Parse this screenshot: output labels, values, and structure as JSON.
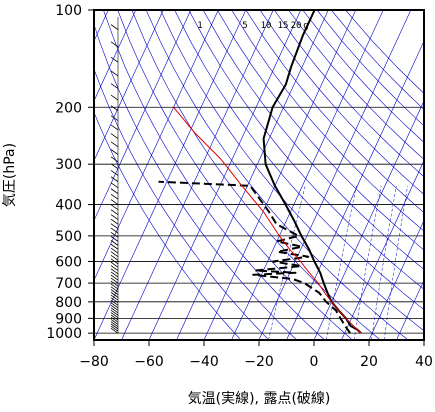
{
  "chart_data": {
    "type": "line",
    "title": "",
    "xlabel": "気温(実線), 露点(破線)",
    "ylabel": "気圧(hPa)",
    "xlim": [
      -80,
      40
    ],
    "ylim": [
      1050,
      100
    ],
    "y_scale": "log",
    "grid": true,
    "x_ticks": [
      -80,
      -60,
      -40,
      -20,
      0,
      20,
      40
    ],
    "y_ticks": [
      100,
      200,
      300,
      400,
      500,
      600,
      700,
      800,
      900,
      1000
    ],
    "mixing_ratio_labels": [
      "1",
      "5",
      "10",
      "15",
      "20",
      "g"
    ],
    "colors": {
      "temperature": "#000000",
      "dewpoint": "#000000",
      "parcel": "#e00000",
      "isotherm": "#0000cc",
      "grid": "#000000"
    },
    "series": [
      {
        "key": "temperature",
        "style": "solid",
        "points": [
          [
            16,
            1000
          ],
          [
            14,
            975
          ],
          [
            11,
            950
          ],
          [
            8,
            900
          ],
          [
            4,
            850
          ],
          [
            0,
            800
          ],
          [
            -3,
            750
          ],
          [
            -6,
            700
          ],
          [
            -9,
            650
          ],
          [
            -13,
            600
          ],
          [
            -17,
            550
          ],
          [
            -22,
            500
          ],
          [
            -27,
            450
          ],
          [
            -33,
            400
          ],
          [
            -40,
            350
          ],
          [
            -47,
            300
          ],
          [
            -52,
            250
          ],
          [
            -54,
            200
          ],
          [
            -53,
            170
          ],
          [
            -54,
            150
          ],
          [
            -55,
            120
          ],
          [
            -55,
            100
          ]
        ]
      },
      {
        "key": "dewpoint",
        "style": "dashed",
        "points": [
          [
            12,
            1000
          ],
          [
            9,
            950
          ],
          [
            6,
            900
          ],
          [
            3,
            850
          ],
          [
            -2,
            800
          ],
          [
            -6,
            750
          ],
          [
            -13,
            700
          ],
          [
            -18,
            680
          ],
          [
            -33,
            660
          ],
          [
            -18,
            650
          ],
          [
            -33,
            640
          ],
          [
            -17,
            620
          ],
          [
            -28,
            600
          ],
          [
            -16,
            580
          ],
          [
            -28,
            560
          ],
          [
            -20,
            540
          ],
          [
            -30,
            520
          ],
          [
            -23,
            500
          ],
          [
            -33,
            460
          ],
          [
            -38,
            420
          ],
          [
            -44,
            380
          ],
          [
            -49,
            350
          ],
          [
            -83,
            340
          ]
        ]
      },
      {
        "key": "parcel",
        "style": "solid",
        "points": [
          [
            16,
            1000
          ],
          [
            12,
            950
          ],
          [
            8,
            900
          ],
          [
            4,
            850
          ],
          [
            0,
            800
          ],
          [
            -4,
            750
          ],
          [
            -8,
            700
          ],
          [
            -13,
            650
          ],
          [
            -18,
            600
          ],
          [
            -24,
            550
          ],
          [
            -30,
            500
          ],
          [
            -40,
            420
          ],
          [
            -52,
            350
          ],
          [
            -64,
            290
          ],
          [
            -78,
            240
          ],
          [
            -90,
            200
          ]
        ]
      }
    ]
  }
}
